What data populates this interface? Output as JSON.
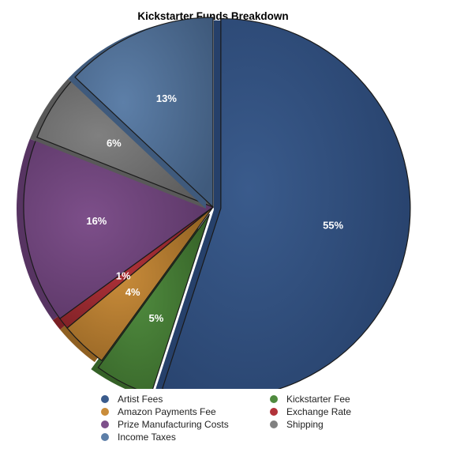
{
  "chart_data": {
    "type": "pie",
    "title": "Kickstarter Funds Breakdown",
    "slices": [
      {
        "label": "Artist Fees",
        "value": 55,
        "display": "55%",
        "color": "#3a5b8c",
        "dark": "#26406a",
        "exploded": true
      },
      {
        "label": "Kickstarter Fee",
        "value": 5,
        "display": "5%",
        "color": "#4f8a3e",
        "dark": "#356127",
        "exploded": true
      },
      {
        "label": "Amazon Payments Fee",
        "value": 4,
        "display": "4%",
        "color": "#c98c3a",
        "dark": "#8f6022",
        "exploded": false
      },
      {
        "label": "Exchange Rate",
        "value": 1,
        "display": "1%",
        "color": "#b2333a",
        "dark": "#7a1f24",
        "exploded": false
      },
      {
        "label": "Prize Manufacturing Costs",
        "value": 16,
        "display": "16%",
        "color": "#7d4f8a",
        "dark": "#573462",
        "exploded": false
      },
      {
        "label": "Shipping",
        "value": 6,
        "display": "6%",
        "color": "#808080",
        "dark": "#595959",
        "exploded": false
      },
      {
        "label": "Income Taxes",
        "value": 13,
        "display": "13%",
        "color": "#5d7fa8",
        "dark": "#3f5a7c",
        "exploded": false
      }
    ],
    "legend": [
      {
        "label": "Artist Fees",
        "color": "#3a5b8c"
      },
      {
        "label": "Kickstarter Fee",
        "color": "#4f8a3e"
      },
      {
        "label": "Amazon Payments Fee",
        "color": "#c98c3a"
      },
      {
        "label": "Exchange Rate",
        "color": "#b2333a"
      },
      {
        "label": "Prize Manufacturing Costs",
        "color": "#7d4f8a"
      },
      {
        "label": "Shipping",
        "color": "#808080"
      },
      {
        "label": "Income Taxes",
        "color": "#5d7fa8"
      }
    ],
    "legend_position": "bottom"
  }
}
